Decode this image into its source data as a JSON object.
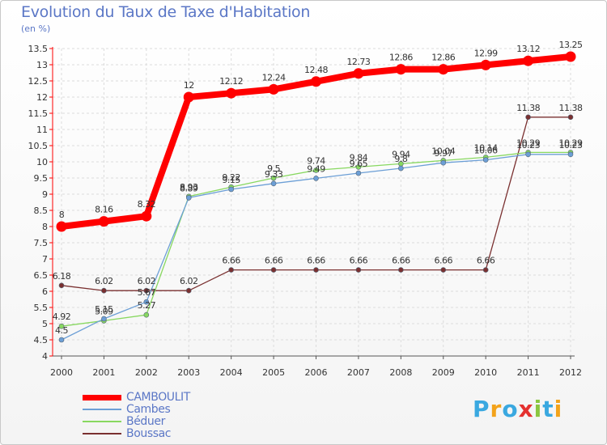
{
  "title": "Evolution du Taux de Taxe d'Habitation",
  "subtitle": "(en %)",
  "logo": {
    "text": "Proxiti",
    "letters": [
      "P",
      "r",
      "o",
      "x",
      "i",
      "t",
      "i"
    ],
    "colors": [
      "#3aa8e0",
      "#f3a31b",
      "#3aa8e0",
      "#e4312f",
      "#8bc640",
      "#3aa8e0",
      "#f3a31b"
    ]
  },
  "chart_data": {
    "type": "line",
    "title": "Evolution du Taux de Taxe d'Habitation",
    "ylabel": "(en %)",
    "xlabel": "",
    "x": [
      "2000",
      "2001",
      "2002",
      "2003",
      "2004",
      "2005",
      "2006",
      "2007",
      "2008",
      "2009",
      "2010",
      "2011",
      "2012"
    ],
    "ylim": [
      4,
      13.5
    ],
    "yticks": [
      "4",
      "4.5",
      "5",
      "5.5",
      "6",
      "6.5",
      "7",
      "7.5",
      "8",
      "8.5",
      "9",
      "9.5",
      "10",
      "10.5",
      "11",
      "11.5",
      "12",
      "12.5",
      "13",
      "13.5"
    ],
    "grid": true,
    "legend": "bottom-left",
    "series": [
      {
        "name": "CAMBOULIT",
        "color": "#ff0000",
        "values": [
          8,
          8.16,
          8.32,
          12,
          12.12,
          12.24,
          12.48,
          12.73,
          12.86,
          12.86,
          12.99,
          13.12,
          13.25
        ],
        "labels": [
          "8",
          "8.16",
          "8.32",
          "12",
          "12.12",
          "12.24",
          "12.48",
          "12.73",
          "12.86",
          "12.86",
          "12.99",
          "13.12",
          "13.25"
        ]
      },
      {
        "name": "Cambes",
        "color": "#6c9fd6",
        "values": [
          4.5,
          5.15,
          5.67,
          8.89,
          9.15,
          9.33,
          9.49,
          9.65,
          9.8,
          9.97,
          10.06,
          10.23,
          10.23
        ],
        "labels": [
          "4.5",
          "5.15",
          "5.67",
          "8.89",
          "9.15",
          "9.33",
          "9.49",
          "9.65",
          "9.8",
          "9.97",
          "10.06",
          "10.23",
          "10.23"
        ]
      },
      {
        "name": "Béduer",
        "color": "#88d860",
        "values": [
          4.92,
          5.09,
          5.27,
          8.93,
          9.22,
          9.5,
          9.74,
          9.84,
          9.94,
          10.04,
          10.14,
          10.29,
          10.29
        ],
        "labels": [
          "4.92",
          "5.09",
          "5.27",
          "8.93",
          "9.22",
          "9.5",
          "9.74",
          "9.84",
          "9.94",
          "10.04",
          "10.14",
          "10.29",
          "10.29"
        ]
      },
      {
        "name": "Boussac",
        "color": "#7a3030",
        "values": [
          6.18,
          6.02,
          6.02,
          6.02,
          6.66,
          6.66,
          6.66,
          6.66,
          6.66,
          6.66,
          6.66,
          11.38,
          11.38
        ],
        "labels": [
          "6.18",
          "6.02",
          "6.02",
          "6.02",
          "6.66",
          "6.66",
          "6.66",
          "6.66",
          "6.66",
          "6.66",
          "6.66",
          "11.38",
          "11.38"
        ]
      }
    ]
  }
}
